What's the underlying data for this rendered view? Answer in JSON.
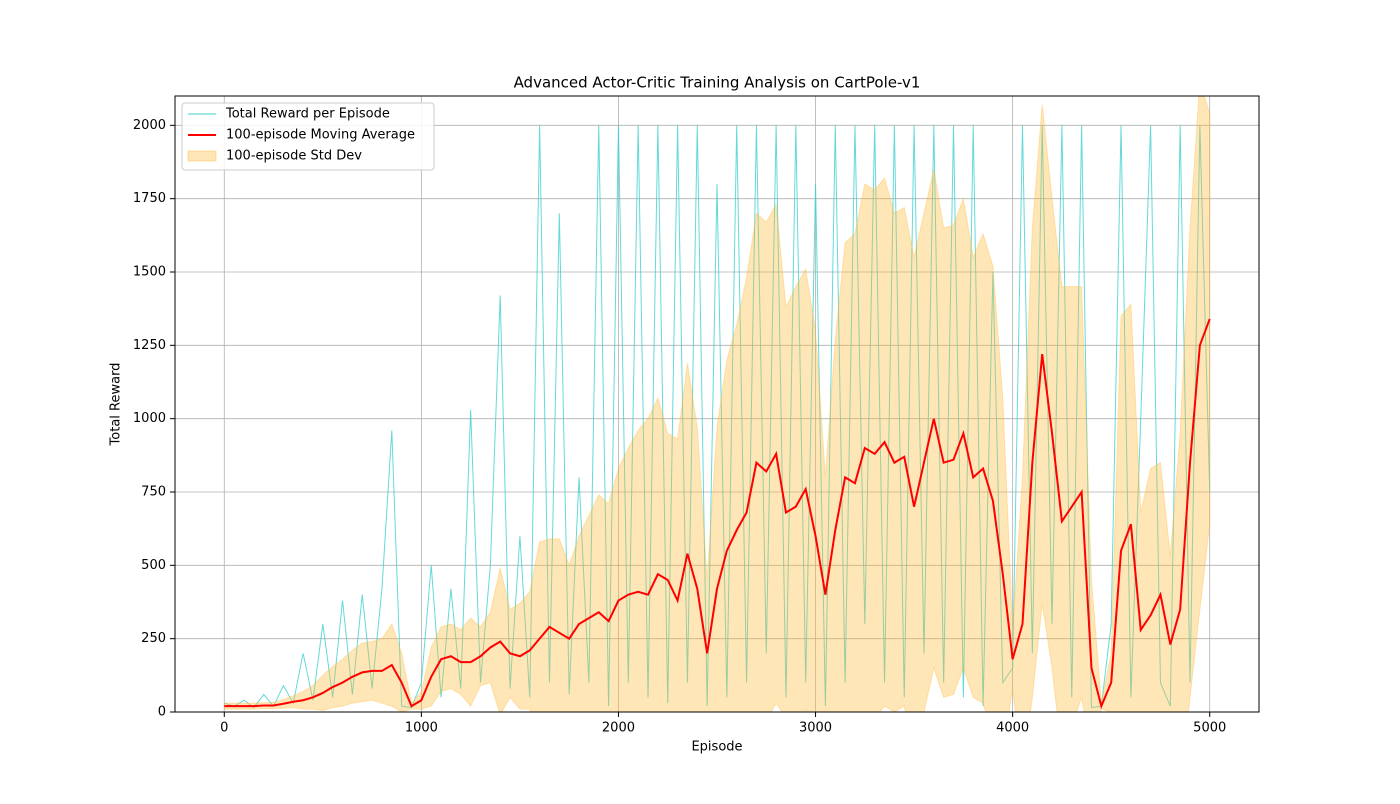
{
  "chart_data": {
    "type": "line",
    "title": "Advanced Actor-Critic Training Analysis on CartPole-v1",
    "x_label": "Episode",
    "y_label": "Total Reward",
    "x": [
      0,
      50,
      100,
      150,
      200,
      250,
      300,
      350,
      400,
      450,
      500,
      550,
      600,
      650,
      700,
      750,
      800,
      850,
      900,
      950,
      1000,
      1050,
      1100,
      1150,
      1200,
      1250,
      1300,
      1350,
      1400,
      1450,
      1500,
      1550,
      1600,
      1650,
      1700,
      1750,
      1800,
      1850,
      1900,
      1950,
      2000,
      2050,
      2100,
      2150,
      2200,
      2250,
      2300,
      2350,
      2400,
      2450,
      2500,
      2550,
      2600,
      2650,
      2700,
      2750,
      2800,
      2850,
      2900,
      2950,
      3000,
      3050,
      3100,
      3150,
      3200,
      3250,
      3300,
      3350,
      3400,
      3450,
      3500,
      3550,
      3600,
      3650,
      3700,
      3750,
      3800,
      3850,
      3900,
      3950,
      4000,
      4050,
      4100,
      4150,
      4200,
      4250,
      4300,
      4350,
      4400,
      4450,
      4500,
      4550,
      4600,
      4650,
      4700,
      4750,
      4800,
      4850,
      4900,
      4950,
      5000
    ],
    "series": [
      {
        "name": "Total Reward per Episode",
        "color": "#3fcfcf",
        "style": "line",
        "values": [
          30,
          20,
          40,
          15,
          60,
          20,
          90,
          30,
          200,
          40,
          300,
          50,
          380,
          60,
          400,
          80,
          420,
          960,
          20,
          15,
          100,
          500,
          50,
          420,
          80,
          1030,
          100,
          500,
          1420,
          80,
          600,
          50,
          2000,
          100,
          1700,
          60,
          800,
          100,
          2000,
          20,
          2000,
          100,
          2000,
          50,
          2000,
          30,
          2000,
          100,
          2000,
          20,
          1800,
          50,
          2000,
          100,
          2000,
          200,
          2000,
          50,
          2000,
          100,
          1800,
          20,
          2000,
          100,
          2000,
          300,
          2000,
          100,
          2000,
          50,
          2000,
          200,
          2000,
          100,
          2000,
          50,
          2000,
          20,
          1500,
          100,
          150,
          2000,
          200,
          2000,
          300,
          2000,
          50,
          2000,
          15,
          20,
          300,
          2000,
          50,
          1000,
          2000,
          100,
          20,
          2000,
          100,
          2000,
          750
        ]
      },
      {
        "name": "100-episode Moving Average",
        "color": "#ff0000",
        "style": "line",
        "values": [
          20,
          20,
          20,
          20,
          22,
          22,
          28,
          35,
          40,
          50,
          65,
          85,
          100,
          120,
          135,
          140,
          140,
          160,
          100,
          20,
          40,
          120,
          180,
          190,
          170,
          170,
          190,
          220,
          240,
          200,
          190,
          210,
          250,
          290,
          270,
          250,
          300,
          320,
          340,
          310,
          380,
          400,
          410,
          400,
          470,
          450,
          380,
          540,
          420,
          200,
          420,
          550,
          620,
          680,
          850,
          820,
          880,
          680,
          700,
          760,
          600,
          400,
          620,
          800,
          780,
          900,
          880,
          920,
          850,
          870,
          700,
          850,
          1000,
          850,
          860,
          950,
          800,
          830,
          720,
          470,
          180,
          300,
          850,
          1220,
          950,
          650,
          700,
          750,
          150,
          20,
          100,
          550,
          640,
          280,
          330,
          400,
          230,
          350,
          850,
          1250,
          1340
        ]
      },
      {
        "name": "100-episode Std Dev",
        "color": "#ffb732",
        "style": "band",
        "values": [
          10,
          10,
          10,
          10,
          10,
          10,
          15,
          20,
          30,
          40,
          60,
          70,
          80,
          90,
          100,
          100,
          110,
          140,
          100,
          10,
          30,
          100,
          110,
          110,
          110,
          150,
          100,
          120,
          250,
          150,
          180,
          200,
          330,
          300,
          320,
          250,
          300,
          350,
          400,
          400,
          450,
          500,
          550,
          600,
          600,
          500,
          550,
          650,
          550,
          250,
          550,
          650,
          700,
          800,
          850,
          850,
          850,
          700,
          750,
          750,
          700,
          400,
          650,
          800,
          850,
          900,
          900,
          900,
          850,
          850,
          850,
          850,
          850,
          800,
          800,
          800,
          750,
          800,
          800,
          600,
          100,
          500,
          800,
          850,
          800,
          800,
          750,
          700,
          300,
          10,
          100,
          800,
          750,
          400,
          500,
          450,
          300,
          600,
          800,
          900,
          700
        ]
      }
    ],
    "xlim": [
      -250,
      5250
    ],
    "ylim": [
      0,
      2100
    ],
    "xticks": [
      0,
      1000,
      2000,
      3000,
      4000,
      5000
    ],
    "yticks": [
      0,
      250,
      500,
      750,
      1000,
      1250,
      1500,
      1750,
      2000
    ],
    "grid": true,
    "legend": "upper-left"
  }
}
